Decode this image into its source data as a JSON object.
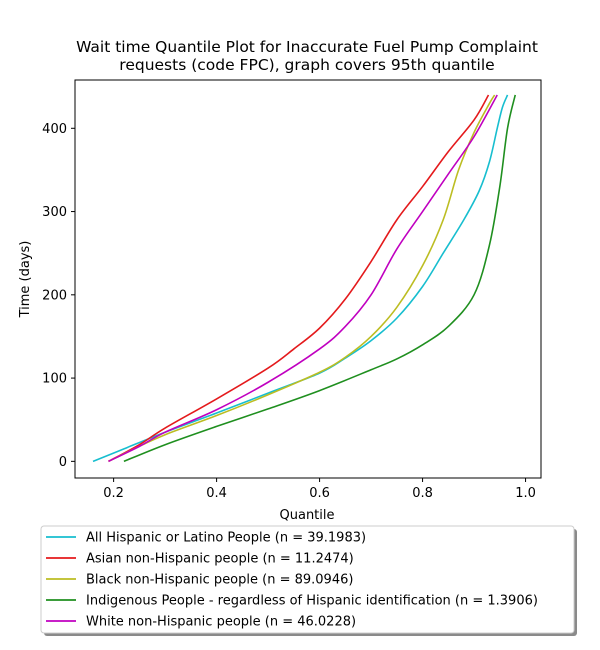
{
  "chart_data": {
    "type": "line",
    "title_lines": [
      "Wait time Quantile Plot for Inaccurate Fuel Pump Complaint",
      "requests (code FPC), graph covers 95th quantile"
    ],
    "xlabel": "Quantile",
    "ylabel": "Time (days)",
    "xlim": [
      0.125,
      1.03
    ],
    "ylim": [
      -20,
      458
    ],
    "xticks": [
      0.2,
      0.4,
      0.6,
      0.8,
      1.0
    ],
    "xtick_labels": [
      "0.2",
      "0.4",
      "0.6",
      "0.8",
      "1.0"
    ],
    "yticks": [
      0,
      100,
      200,
      300,
      400
    ],
    "ytick_labels": [
      "0",
      "100",
      "200",
      "300",
      "400"
    ],
    "grid": false,
    "legend_position": "below-plot",
    "series": [
      {
        "name": "All Hispanic or Latino People (n = 39.1983)",
        "color": "#17becf",
        "points": [
          [
            0.16,
            0
          ],
          [
            0.22,
            15
          ],
          [
            0.3,
            35
          ],
          [
            0.4,
            58
          ],
          [
            0.5,
            82
          ],
          [
            0.6,
            106
          ],
          [
            0.65,
            124
          ],
          [
            0.7,
            145
          ],
          [
            0.75,
            172
          ],
          [
            0.8,
            210
          ],
          [
            0.84,
            250
          ],
          [
            0.88,
            290
          ],
          [
            0.91,
            325
          ],
          [
            0.93,
            360
          ],
          [
            0.945,
            400
          ],
          [
            0.955,
            425
          ],
          [
            0.965,
            440
          ]
        ]
      },
      {
        "name": "Asian non-Hispanic people (n = 11.2474)",
        "color": "#e41a1c",
        "points": [
          [
            0.19,
            0
          ],
          [
            0.25,
            20
          ],
          [
            0.3,
            40
          ],
          [
            0.4,
            75
          ],
          [
            0.5,
            112
          ],
          [
            0.55,
            135
          ],
          [
            0.6,
            160
          ],
          [
            0.65,
            195
          ],
          [
            0.7,
            240
          ],
          [
            0.75,
            290
          ],
          [
            0.8,
            330
          ],
          [
            0.85,
            372
          ],
          [
            0.9,
            410
          ],
          [
            0.928,
            440
          ]
        ]
      },
      {
        "name": "Black non-Hispanic people (n = 89.0946)",
        "color": "#bcbd22",
        "points": [
          [
            0.19,
            0
          ],
          [
            0.25,
            18
          ],
          [
            0.3,
            32
          ],
          [
            0.4,
            55
          ],
          [
            0.5,
            80
          ],
          [
            0.6,
            107
          ],
          [
            0.65,
            125
          ],
          [
            0.7,
            150
          ],
          [
            0.75,
            185
          ],
          [
            0.8,
            235
          ],
          [
            0.84,
            290
          ],
          [
            0.87,
            350
          ],
          [
            0.9,
            395
          ],
          [
            0.93,
            430
          ],
          [
            0.94,
            440
          ]
        ]
      },
      {
        "name": "Indigenous People - regardless of Hispanic identification (n = 1.3906)",
        "color": "#1f8f1f",
        "points": [
          [
            0.22,
            0
          ],
          [
            0.3,
            20
          ],
          [
            0.4,
            42
          ],
          [
            0.5,
            63
          ],
          [
            0.6,
            85
          ],
          [
            0.7,
            110
          ],
          [
            0.75,
            123
          ],
          [
            0.8,
            140
          ],
          [
            0.85,
            162
          ],
          [
            0.9,
            200
          ],
          [
            0.93,
            260
          ],
          [
            0.95,
            330
          ],
          [
            0.965,
            400
          ],
          [
            0.98,
            440
          ]
        ]
      },
      {
        "name": "White non-Hispanic people (n = 46.0228)",
        "color": "#c000c0",
        "points": [
          [
            0.19,
            0
          ],
          [
            0.25,
            18
          ],
          [
            0.3,
            35
          ],
          [
            0.4,
            62
          ],
          [
            0.5,
            95
          ],
          [
            0.6,
            135
          ],
          [
            0.65,
            162
          ],
          [
            0.7,
            200
          ],
          [
            0.75,
            255
          ],
          [
            0.8,
            300
          ],
          [
            0.85,
            345
          ],
          [
            0.9,
            390
          ],
          [
            0.945,
            440
          ]
        ]
      }
    ]
  }
}
